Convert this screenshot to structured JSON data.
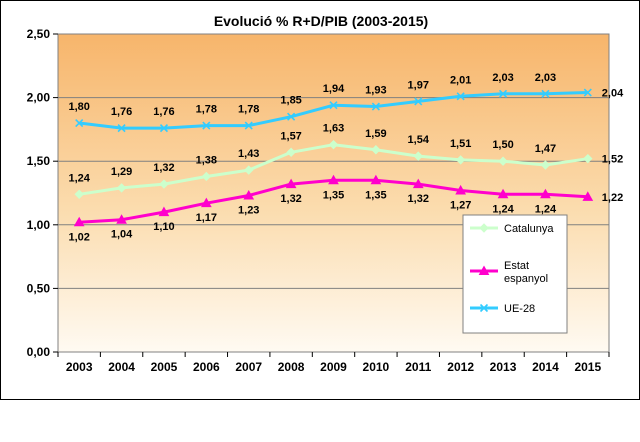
{
  "chart_data": {
    "type": "line",
    "title": "Evolució % R+D/PIB (2003-2015)",
    "xlabel": "",
    "ylabel": "",
    "categories": [
      "2003",
      "2004",
      "2005",
      "2006",
      "2007",
      "2008",
      "2009",
      "2010",
      "2011",
      "2012",
      "2013",
      "2014",
      "2015"
    ],
    "y_ticks": [
      "0,00",
      "0,50",
      "1,00",
      "1,50",
      "2,00",
      "2,50"
    ],
    "ylim": [
      0,
      2.5
    ],
    "grid": true,
    "legend_position": "right",
    "series": [
      {
        "name": "Catalunya",
        "color": "#ccffcc",
        "marker": "diamond",
        "values": [
          1.24,
          1.29,
          1.32,
          1.38,
          1.43,
          1.57,
          1.63,
          1.59,
          1.54,
          1.51,
          1.5,
          1.47,
          1.52
        ],
        "labels": [
          "1,24",
          "1,29",
          "1,32",
          "1,38",
          "1,43",
          "1,57",
          "1,63",
          "1,59",
          "1,54",
          "1,51",
          "1,50",
          "1,47",
          "1,52"
        ]
      },
      {
        "name": "Estat espanyol",
        "legend_lines": [
          "Estat",
          "espanyol"
        ],
        "color": "#ff00cc",
        "marker": "triangle",
        "values": [
          1.02,
          1.04,
          1.1,
          1.17,
          1.23,
          1.32,
          1.35,
          1.35,
          1.32,
          1.27,
          1.24,
          1.24,
          1.22
        ],
        "labels": [
          "1,02",
          "1,04",
          "1,10",
          "1,17",
          "1,23",
          "1,32",
          "1,35",
          "1,35",
          "1,32",
          "1,27",
          "1,24",
          "1,24",
          "1,22"
        ]
      },
      {
        "name": "UE-28",
        "color": "#33ccff",
        "marker": "x",
        "values": [
          1.8,
          1.76,
          1.76,
          1.78,
          1.78,
          1.85,
          1.94,
          1.93,
          1.97,
          2.01,
          2.03,
          2.03,
          2.04
        ],
        "labels": [
          "1,80",
          "1,76",
          "1,76",
          "1,78",
          "1,78",
          "1,85",
          "1,94",
          "1,93",
          "1,97",
          "2,01",
          "2,03",
          "2,03",
          "2,04"
        ]
      }
    ]
  }
}
